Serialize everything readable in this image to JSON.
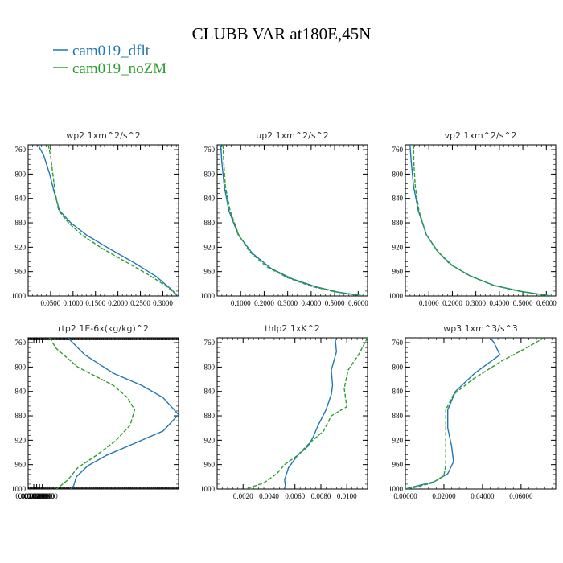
{
  "figure": {
    "title": "CLUBB VAR at180E,45N",
    "legend": [
      {
        "name": "cam019_dflt",
        "color": "#1f77b4",
        "dash": "solid"
      },
      {
        "name": "cam019_noZM",
        "color": "#2ca02c",
        "dash": "dashed"
      }
    ]
  },
  "chart_data": [
    {
      "type": "line",
      "title": "wp2   1xm^2/s^2",
      "xlim": [
        0.0,
        0.335
      ],
      "ylim": [
        1000,
        752
      ],
      "xticks": [
        0.05,
        0.1,
        0.15,
        0.2,
        0.25,
        0.3
      ],
      "xticklabels": [
        "0.0500",
        "0.1000",
        "0.1500",
        "0.2000",
        "0.2500",
        "0.3000"
      ],
      "yticks": [
        760,
        800,
        840,
        880,
        920,
        960,
        1000
      ],
      "yticklabels": [
        "760",
        "800",
        "840",
        "880",
        "920",
        "960",
        "1000"
      ],
      "series": [
        {
          "name": "cam019_dflt",
          "points": [
            [
              0.022,
              752
            ],
            [
              0.035,
              770
            ],
            [
              0.048,
              800
            ],
            [
              0.058,
              830
            ],
            [
              0.07,
              860
            ],
            [
              0.095,
              880
            ],
            [
              0.13,
              900
            ],
            [
              0.18,
              922
            ],
            [
              0.235,
              945
            ],
            [
              0.285,
              968
            ],
            [
              0.32,
              990
            ],
            [
              0.333,
              1000
            ]
          ]
        },
        {
          "name": "cam019_noZM",
          "points": [
            [
              0.045,
              752
            ],
            [
              0.05,
              770
            ],
            [
              0.055,
              800
            ],
            [
              0.06,
              830
            ],
            [
              0.068,
              860
            ],
            [
              0.09,
              880
            ],
            [
              0.12,
              900
            ],
            [
              0.165,
              922
            ],
            [
              0.22,
              945
            ],
            [
              0.27,
              966
            ],
            [
              0.31,
              985
            ],
            [
              0.333,
              1000
            ]
          ]
        }
      ]
    },
    {
      "type": "line",
      "title": "up2   1xm^2/s^2",
      "xlim": [
        0.0,
        0.64
      ],
      "ylim": [
        1000,
        752
      ],
      "xticks": [
        0.1,
        0.2,
        0.3,
        0.4,
        0.5,
        0.6
      ],
      "xticklabels": [
        "0.1000",
        "0.2000",
        "0.3000",
        "0.4000",
        "0.5000",
        "0.6000"
      ],
      "yticks": [
        760,
        800,
        840,
        880,
        920,
        960,
        1000
      ],
      "yticklabels": [
        "760",
        "800",
        "840",
        "880",
        "920",
        "960",
        "1000"
      ],
      "series": [
        {
          "name": "cam019_dflt",
          "points": [
            [
              0.015,
              752
            ],
            [
              0.02,
              780
            ],
            [
              0.03,
              820
            ],
            [
              0.05,
              860
            ],
            [
              0.09,
              900
            ],
            [
              0.15,
              930
            ],
            [
              0.23,
              955
            ],
            [
              0.32,
              972
            ],
            [
              0.42,
              985
            ],
            [
              0.52,
              994
            ],
            [
              0.62,
              1000
            ]
          ]
        },
        {
          "name": "cam019_noZM",
          "points": [
            [
              0.025,
              752
            ],
            [
              0.028,
              780
            ],
            [
              0.035,
              820
            ],
            [
              0.055,
              860
            ],
            [
              0.092,
              900
            ],
            [
              0.14,
              928
            ],
            [
              0.21,
              952
            ],
            [
              0.3,
              970
            ],
            [
              0.4,
              984
            ],
            [
              0.5,
              993
            ],
            [
              0.62,
              1000
            ]
          ]
        }
      ]
    },
    {
      "type": "line",
      "title": "vp2   1xm^2/s^2",
      "xlim": [
        0.0,
        0.64
      ],
      "ylim": [
        1000,
        752
      ],
      "xticks": [
        0.1,
        0.2,
        0.3,
        0.4,
        0.5,
        0.6
      ],
      "xticklabels": [
        "0.1000",
        "0.2000",
        "0.3000",
        "0.4000",
        "0.5000",
        "0.6000"
      ],
      "yticks": [
        760,
        800,
        840,
        880,
        920,
        960,
        1000
      ],
      "yticklabels": [
        "760",
        "800",
        "840",
        "880",
        "920",
        "960",
        "1000"
      ],
      "series": [
        {
          "name": "cam019_dflt",
          "points": [
            [
              0.02,
              752
            ],
            [
              0.025,
              780
            ],
            [
              0.035,
              820
            ],
            [
              0.055,
              860
            ],
            [
              0.09,
              900
            ],
            [
              0.14,
              928
            ],
            [
              0.2,
              950
            ],
            [
              0.28,
              968
            ],
            [
              0.38,
              983
            ],
            [
              0.5,
              993
            ],
            [
              0.62,
              1000
            ]
          ]
        },
        {
          "name": "cam019_noZM",
          "points": [
            [
              0.035,
              752
            ],
            [
              0.036,
              780
            ],
            [
              0.042,
              820
            ],
            [
              0.058,
              860
            ],
            [
              0.09,
              900
            ],
            [
              0.135,
              926
            ],
            [
              0.19,
              948
            ],
            [
              0.27,
              966
            ],
            [
              0.37,
              982
            ],
            [
              0.48,
              992
            ],
            [
              0.62,
              1000
            ]
          ]
        }
      ]
    },
    {
      "type": "line",
      "title": "rtp2   1E-6x(kg/kg)^2",
      "xlim": [
        0.0,
        0.106
      ],
      "ylim": [
        1000,
        752
      ],
      "xticks": [
        0.002,
        0.004,
        0.006,
        0.008,
        0.01
      ],
      "xticklabels": [
        "0.0020000",
        "0.0040000",
        "0.0060000",
        "0.0080000",
        "0.0100000"
      ],
      "yticks": [
        760,
        800,
        840,
        880,
        920,
        960,
        1000
      ],
      "yticklabels": [
        "760",
        "800",
        "840",
        "880",
        "920",
        "960",
        "1000"
      ],
      "series": [
        {
          "name": "cam019_dflt",
          "points": [
            [
              0.028,
              752
            ],
            [
              0.04,
              780
            ],
            [
              0.06,
              810
            ],
            [
              0.08,
              830
            ],
            [
              0.095,
              850
            ],
            [
              0.106,
              878
            ],
            [
              0.095,
              905
            ],
            [
              0.075,
              925
            ],
            [
              0.055,
              945
            ],
            [
              0.042,
              962
            ],
            [
              0.034,
              980
            ],
            [
              0.032,
              995
            ],
            [
              0.03,
              1000
            ]
          ]
        },
        {
          "name": "cam019_noZM",
          "points": [
            [
              0.015,
              752
            ],
            [
              0.02,
              770
            ],
            [
              0.035,
              800
            ],
            [
              0.06,
              830
            ],
            [
              0.07,
              850
            ],
            [
              0.075,
              870
            ],
            [
              0.072,
              895
            ],
            [
              0.062,
              920
            ],
            [
              0.048,
              945
            ],
            [
              0.035,
              965
            ],
            [
              0.028,
              985
            ],
            [
              0.02,
              1000
            ]
          ]
        }
      ]
    },
    {
      "type": "line",
      "title": "thlp2   1xK^2",
      "xlim": [
        0.0,
        0.0116
      ],
      "ylim": [
        1000,
        752
      ],
      "xticks": [
        0.002,
        0.004,
        0.006,
        0.008,
        0.01
      ],
      "xticklabels": [
        "0.0020",
        "0.0040",
        "0.0060",
        "0.0080",
        "0.0100"
      ],
      "yticks": [
        760,
        800,
        840,
        880,
        920,
        960,
        1000
      ],
      "yticklabels": [
        "760",
        "800",
        "840",
        "880",
        "920",
        "960",
        "1000"
      ],
      "series": [
        {
          "name": "cam019_dflt",
          "points": [
            [
              0.0091,
              752
            ],
            [
              0.0092,
              775
            ],
            [
              0.0088,
              805
            ],
            [
              0.0089,
              830
            ],
            [
              0.0088,
              845
            ],
            [
              0.0084,
              870
            ],
            [
              0.0078,
              895
            ],
            [
              0.0074,
              915
            ],
            [
              0.007,
              930
            ],
            [
              0.0062,
              945
            ],
            [
              0.0055,
              965
            ],
            [
              0.0052,
              985
            ],
            [
              0.0053,
              1000
            ]
          ]
        },
        {
          "name": "cam019_noZM",
          "points": [
            [
              0.0116,
              752
            ],
            [
              0.0109,
              780
            ],
            [
              0.0101,
              805
            ],
            [
              0.0098,
              835
            ],
            [
              0.01,
              865
            ],
            [
              0.0088,
              880
            ],
            [
              0.0082,
              905
            ],
            [
              0.0071,
              925
            ],
            [
              0.0062,
              945
            ],
            [
              0.0052,
              960
            ],
            [
              0.0046,
              975
            ],
            [
              0.0036,
              990
            ],
            [
              0.0022,
              1000
            ]
          ]
        }
      ]
    },
    {
      "type": "line",
      "title": "wp3   1xm^3/s^3",
      "xlim": [
        0.0,
        0.078
      ],
      "ylim": [
        1000,
        752
      ],
      "xticks": [
        0.0,
        0.02,
        0.04,
        0.06
      ],
      "xticklabels": [
        "0.00000",
        "0.02000",
        "0.04000",
        "0.06000"
      ],
      "yticks": [
        760,
        800,
        840,
        880,
        920,
        960,
        1000
      ],
      "yticklabels": [
        "760",
        "800",
        "840",
        "880",
        "920",
        "960",
        "1000"
      ],
      "series": [
        {
          "name": "cam019_dflt",
          "points": [
            [
              0.044,
              752
            ],
            [
              0.046,
              760
            ],
            [
              0.049,
              780
            ],
            [
              0.036,
              810
            ],
            [
              0.026,
              840
            ],
            [
              0.022,
              870
            ],
            [
              0.022,
              900
            ],
            [
              0.024,
              930
            ],
            [
              0.025,
              955
            ],
            [
              0.022,
              975
            ],
            [
              0.015,
              988
            ],
            [
              0.002,
              998
            ],
            [
              0.0,
              1000
            ]
          ]
        },
        {
          "name": "cam019_noZM",
          "points": [
            [
              0.072,
              752
            ],
            [
              0.062,
              770
            ],
            [
              0.05,
              790
            ],
            [
              0.035,
              820
            ],
            [
              0.025,
              845
            ],
            [
              0.021,
              870
            ],
            [
              0.021,
              900
            ],
            [
              0.021,
              930
            ],
            [
              0.021,
              960
            ],
            [
              0.02,
              978
            ],
            [
              0.014,
              990
            ],
            [
              0.004,
              998
            ],
            [
              0.0,
              1000
            ]
          ]
        }
      ]
    }
  ]
}
